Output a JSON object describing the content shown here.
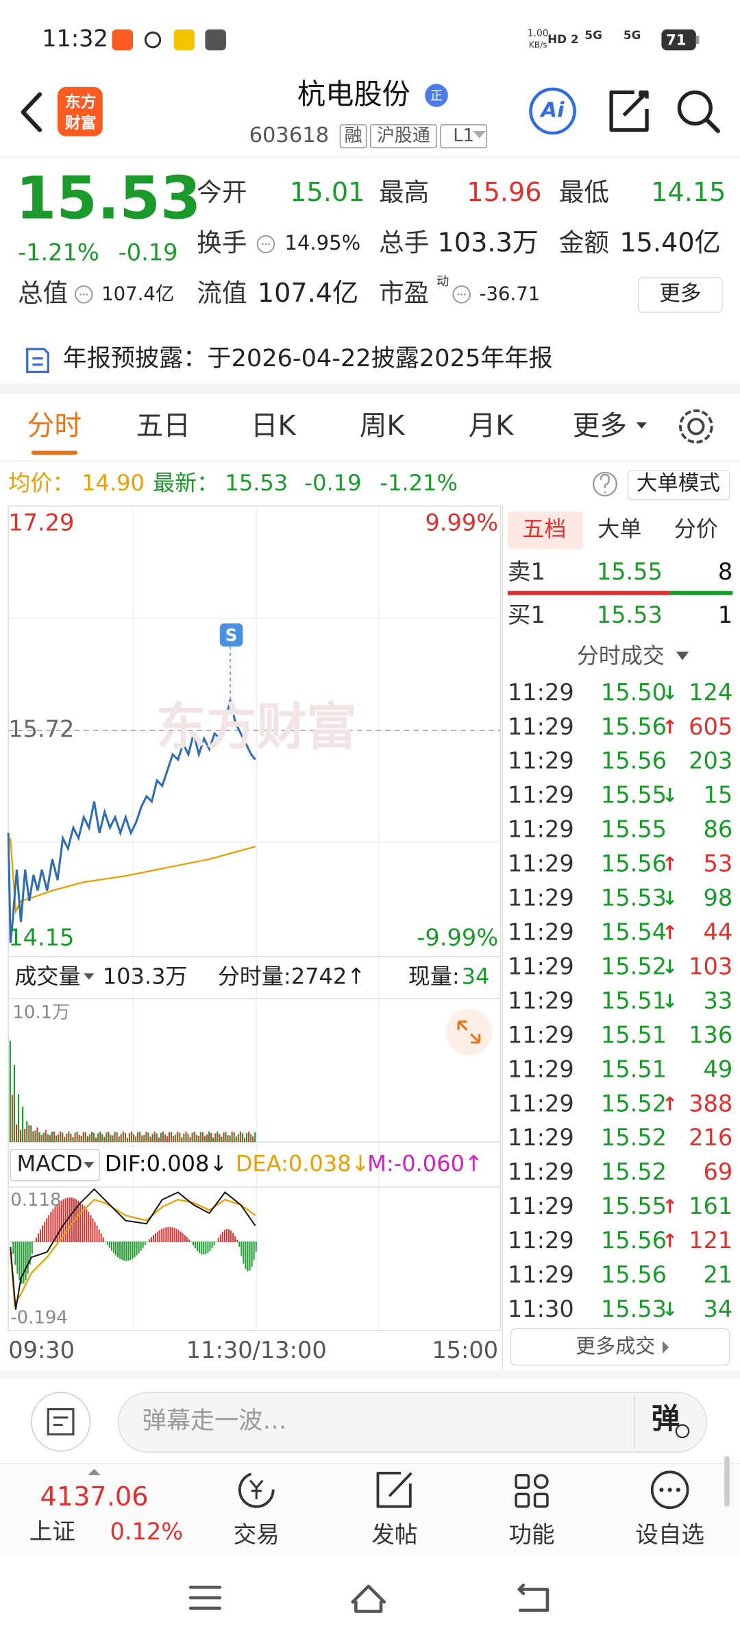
{
  "status_bar": {
    "time": "11:32",
    "net_speed": "1.00",
    "net_unit": "KB/s",
    "hd": "HD 2",
    "signal_1": "5G",
    "signal_2": "5G",
    "battery": "71"
  },
  "header": {
    "logo_lines": [
      "东方",
      "财富"
    ],
    "title": "杭电股份",
    "badge": "正",
    "code": "603618",
    "tags": [
      "融",
      "沪股通",
      "L1"
    ],
    "ai": "Ai"
  },
  "quote": {
    "price": "15.53",
    "change_pct": "-1.21%",
    "change": "-0.19",
    "stats": [
      {
        "label": "今开",
        "value": "15.01",
        "color": "#1a9a2a"
      },
      {
        "label": "最高",
        "value": "15.96",
        "color": "#e0302e"
      },
      {
        "label": "最低",
        "value": "14.15",
        "color": "#1a9a2a"
      },
      {
        "label": "换手",
        "value": "14.95%",
        "color": "#222222"
      },
      {
        "label": "总手",
        "value": "103.3万",
        "color": "#222222"
      },
      {
        "label": "金额",
        "value": "15.40亿",
        "color": "#222222"
      },
      {
        "label": "总值",
        "value": "107.4亿",
        "color": "#222222"
      },
      {
        "label": "流值",
        "value": "107.4亿",
        "color": "#222222"
      },
      {
        "label": "市盈",
        "label_sup": "动",
        "value": "-36.71",
        "color": "#222222"
      }
    ],
    "more": "更多"
  },
  "notice": "年报预披露：于2026-04-22披露2025年年报",
  "tabs": {
    "items": [
      "分时",
      "五日",
      "日K",
      "周K",
      "月K",
      "更多"
    ],
    "active": 0
  },
  "info": {
    "avg_label": "均价：",
    "avg": "14.90",
    "latest_label": "最新：",
    "latest": "15.53",
    "change": "-0.19",
    "change_pct": "-1.21%",
    "mode": "大单模式"
  },
  "chart": {
    "high": "17.29",
    "high_pct": "9.99%",
    "mid": "15.72",
    "low": "14.15",
    "low_pct": "-9.99%",
    "marker": "S",
    "watermark": "东方财富"
  },
  "volume": {
    "label": "成交量",
    "total": "103.3万",
    "tick_volume": "分时量:2742↑",
    "now_label": "现量:",
    "now_value": "34",
    "max": "10.1万"
  },
  "macd": {
    "label": "MACD",
    "dif": "DIF:0.008↓",
    "dea": "DEA:0.038↓",
    "m": "M:-0.060↑",
    "max": "0.118",
    "min": "-0.194"
  },
  "time_axis": [
    "09:30",
    "11:30/13:00",
    "15:00"
  ],
  "order_panel": {
    "tabs": [
      "五档",
      "大单",
      "分价"
    ],
    "active_tab": 0,
    "asks": [
      {
        "label": "卖1",
        "price": "15.55",
        "volume": "8"
      }
    ],
    "bids": [
      {
        "label": "买1",
        "price": "15.53",
        "volume": "1"
      }
    ],
    "trades_title": "分时成交",
    "trades": [
      {
        "time": "11:29",
        "price": "15.50",
        "arrow": "↓",
        "arrow_color": "#1a9a2a",
        "volume": "124",
        "color": "#1a9a2a"
      },
      {
        "time": "11:29",
        "price": "15.56",
        "arrow": "↑",
        "arrow_color": "#e0302e",
        "volume": "605",
        "color": "#e0302e"
      },
      {
        "time": "11:29",
        "price": "15.56",
        "volume": "203",
        "color": "#1a9a2a"
      },
      {
        "time": "11:29",
        "price": "15.55",
        "arrow": "↓",
        "arrow_color": "#1a9a2a",
        "volume": "15",
        "color": "#1a9a2a"
      },
      {
        "time": "11:29",
        "price": "15.55",
        "volume": "86",
        "color": "#1a9a2a"
      },
      {
        "time": "11:29",
        "price": "15.56",
        "arrow": "↑",
        "arrow_color": "#e0302e",
        "volume": "53",
        "color": "#e0302e"
      },
      {
        "time": "11:29",
        "price": "15.53",
        "arrow": "↓",
        "arrow_color": "#1a9a2a",
        "volume": "98",
        "color": "#1a9a2a"
      },
      {
        "time": "11:29",
        "price": "15.54",
        "arrow": "↑",
        "arrow_color": "#e0302e",
        "volume": "44",
        "color": "#e0302e"
      },
      {
        "time": "11:29",
        "price": "15.52",
        "arrow": "↓",
        "arrow_color": "#1a9a2a",
        "volume": "103",
        "color": "#e0302e"
      },
      {
        "time": "11:29",
        "price": "15.51",
        "arrow": "↓",
        "arrow_color": "#1a9a2a",
        "volume": "33",
        "color": "#1a9a2a"
      },
      {
        "time": "11:29",
        "price": "15.51",
        "volume": "136",
        "color": "#1a9a2a"
      },
      {
        "time": "11:29",
        "price": "15.51",
        "volume": "49",
        "color": "#1a9a2a"
      },
      {
        "time": "11:29",
        "price": "15.52",
        "arrow": "↑",
        "arrow_color": "#e0302e",
        "volume": "388",
        "color": "#e0302e"
      },
      {
        "time": "11:29",
        "price": "15.52",
        "volume": "216",
        "color": "#e0302e"
      },
      {
        "time": "11:29",
        "price": "15.52",
        "volume": "69",
        "color": "#e0302e"
      },
      {
        "time": "11:29",
        "price": "15.55",
        "arrow": "↑",
        "arrow_color": "#e0302e",
        "volume": "161",
        "color": "#1a9a2a"
      },
      {
        "time": "11:29",
        "price": "15.56",
        "arrow": "↑",
        "arrow_color": "#e0302e",
        "volume": "121",
        "color": "#e0302e"
      },
      {
        "time": "11:29",
        "price": "15.56",
        "volume": "21",
        "color": "#1a9a2a"
      },
      {
        "time": "11:30",
        "price": "15.53",
        "arrow": "↓",
        "arrow_color": "#1a9a2a",
        "volume": "34",
        "color": "#1a9a2a"
      }
    ],
    "more": "更多成交"
  },
  "comment": {
    "placeholder": "弹幕走一波…",
    "button": "弹"
  },
  "bottom_nav": {
    "index": {
      "value": "4137.06",
      "name": "上证",
      "change": "0.12%"
    },
    "items": [
      "交易",
      "发帖",
      "功能",
      "设自选"
    ]
  }
}
